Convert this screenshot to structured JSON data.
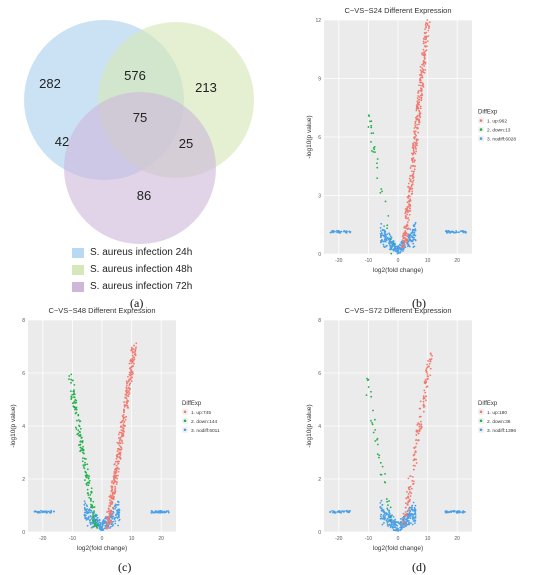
{
  "panel_labels": [
    "(a)",
    "(b)",
    "(c)",
    "(d)"
  ],
  "chart_data": [
    {
      "type": "venn",
      "panel": "(a)",
      "sets": [
        {
          "name": "S. aureus infection 24h",
          "color": "#b9d8f2"
        },
        {
          "name": "S. aureus infection 48h",
          "color": "#d6e8b9"
        },
        {
          "name": "S. aureus infection 72h",
          "color": "#cdb8da"
        }
      ],
      "regions": {
        "only_24h": 282,
        "only_48h": 213,
        "only_72h": 86,
        "24h_48h": 576,
        "24h_72h": 42,
        "48h_72h": 25,
        "all": 75
      }
    },
    {
      "type": "scatter",
      "panel": "(b)",
      "title": "C−VS−S24 Different Expression",
      "xlabel": "log2(fold change)",
      "ylabel": "-log10(p value)",
      "xlim": [
        -25,
        25
      ],
      "ylim": [
        0,
        12
      ],
      "xticks": [
        "-20",
        "-10",
        "0",
        "10",
        "20"
      ],
      "yticks": [
        "0",
        "3",
        "6",
        "9",
        "12"
      ],
      "legend_title": "DiffExp",
      "legend": [
        {
          "name": "1. up:962",
          "color": "#f07a70"
        },
        {
          "name": "2. down:13",
          "color": "#22b04a"
        },
        {
          "name": "3. nodiff:6028",
          "color": "#4aa0e6"
        }
      ],
      "spread": {
        "up": 1.15,
        "down": 0.8
      },
      "n": {
        "up": 420,
        "down": 30
      }
    },
    {
      "type": "scatter",
      "panel": "(c)",
      "title": "C−VS−S48 Different Expression",
      "xlabel": "log2(fold change)",
      "ylabel": "-log10(p value)",
      "xlim": [
        -25,
        25
      ],
      "ylim": [
        0,
        8
      ],
      "xticks": [
        "-20",
        "-10",
        "0",
        "10",
        "20"
      ],
      "yticks": [
        "0",
        "2",
        "4",
        "6",
        "8"
      ],
      "legend_title": "DiffExp",
      "legend": [
        {
          "name": "1. up:745",
          "color": "#f07a70"
        },
        {
          "name": "2. down:144",
          "color": "#22b04a"
        },
        {
          "name": "3. nodiff:6011",
          "color": "#4aa0e6"
        }
      ],
      "spread": {
        "up": 0.9,
        "down": 0.9
      },
      "n": {
        "up": 350,
        "down": 160
      }
    },
    {
      "type": "scatter",
      "panel": "(d)",
      "title": "C−VS−S72 Different Expression",
      "xlabel": "log2(fold change)",
      "ylabel": "-log10(p value)",
      "xlim": [
        -25,
        25
      ],
      "ylim": [
        0,
        8
      ],
      "xticks": [
        "-20",
        "-10",
        "0",
        "10",
        "20"
      ],
      "yticks": [
        "0",
        "2",
        "4",
        "6",
        "8"
      ],
      "legend_title": "DiffExp",
      "legend": [
        {
          "name": "1. up:180",
          "color": "#f07a70"
        },
        {
          "name": "2. down:36",
          "color": "#22b04a"
        },
        {
          "name": "3. nodiff:1396",
          "color": "#4aa0e6"
        }
      ],
      "spread": {
        "up": 0.85,
        "down": 0.9
      },
      "n": {
        "up": 150,
        "down": 36
      }
    }
  ]
}
